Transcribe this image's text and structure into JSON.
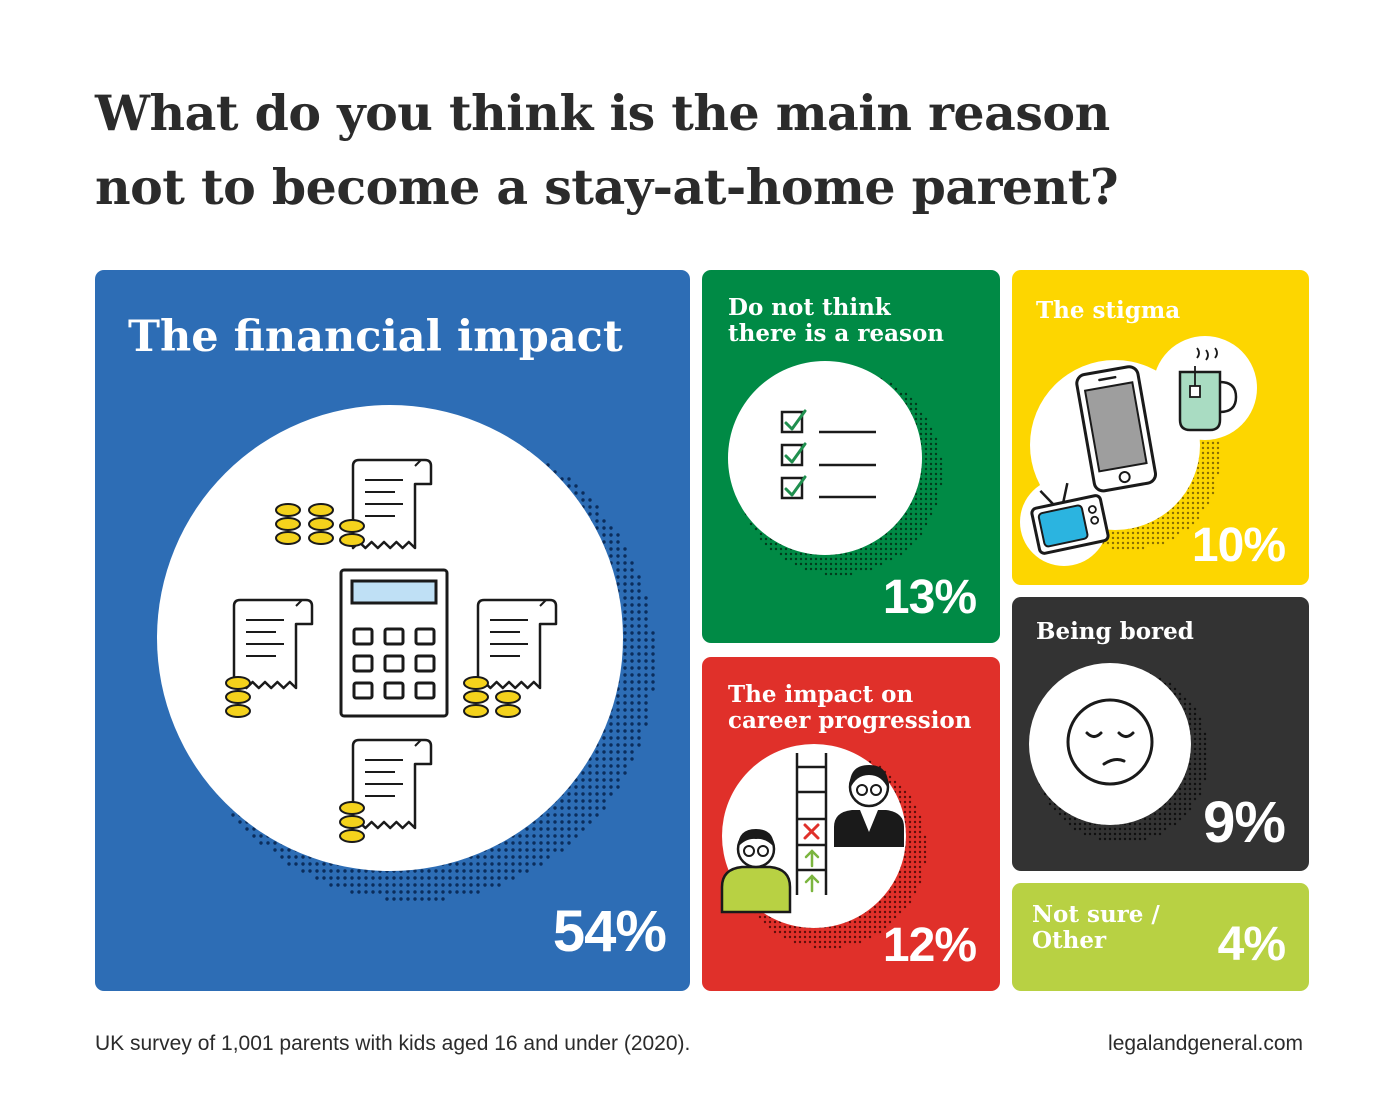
{
  "title": {
    "line1": "What do you think is the main reason",
    "line2": "not to become a stay-at-home parent?"
  },
  "chart_data": {
    "type": "treemap",
    "title": "What do you think is the main reason not to become a stay-at-home parent?",
    "unit": "%",
    "categories": [
      "The financial impact",
      "Do not think there is a reason",
      "The impact on career progression",
      "The stigma",
      "Being bored",
      "Not sure / Other"
    ],
    "values": [
      54,
      13,
      12,
      10,
      9,
      4
    ],
    "value_labels": [
      "54%",
      "13%",
      "12%",
      "10%",
      "9%",
      "4%"
    ],
    "colors": [
      "#2d6db5",
      "#008a45",
      "#e0302a",
      "#fdd600",
      "#333333",
      "#b8d143"
    ],
    "icons": [
      "calculator-receipts-coins-icon",
      "checklist-icon",
      "career-ladder-icon",
      "phone-tv-mug-icon",
      "bored-face-icon",
      ""
    ]
  },
  "tiles": {
    "financial": {
      "label": "The financial impact",
      "value": "54%"
    },
    "no_reason": {
      "label": "Do not think\nthere is a reason",
      "value": "13%"
    },
    "career": {
      "label": "The impact on\ncareer progression",
      "value": "12%"
    },
    "stigma": {
      "label": "The stigma",
      "value": "10%"
    },
    "bored": {
      "label": "Being bored",
      "value": "9%"
    },
    "other": {
      "label": "Not sure /\nOther",
      "value": "4%"
    }
  },
  "footnote": "UK survey of 1,001 parents with kids aged 16 and under (2020).",
  "source": "legalandgeneral.com"
}
